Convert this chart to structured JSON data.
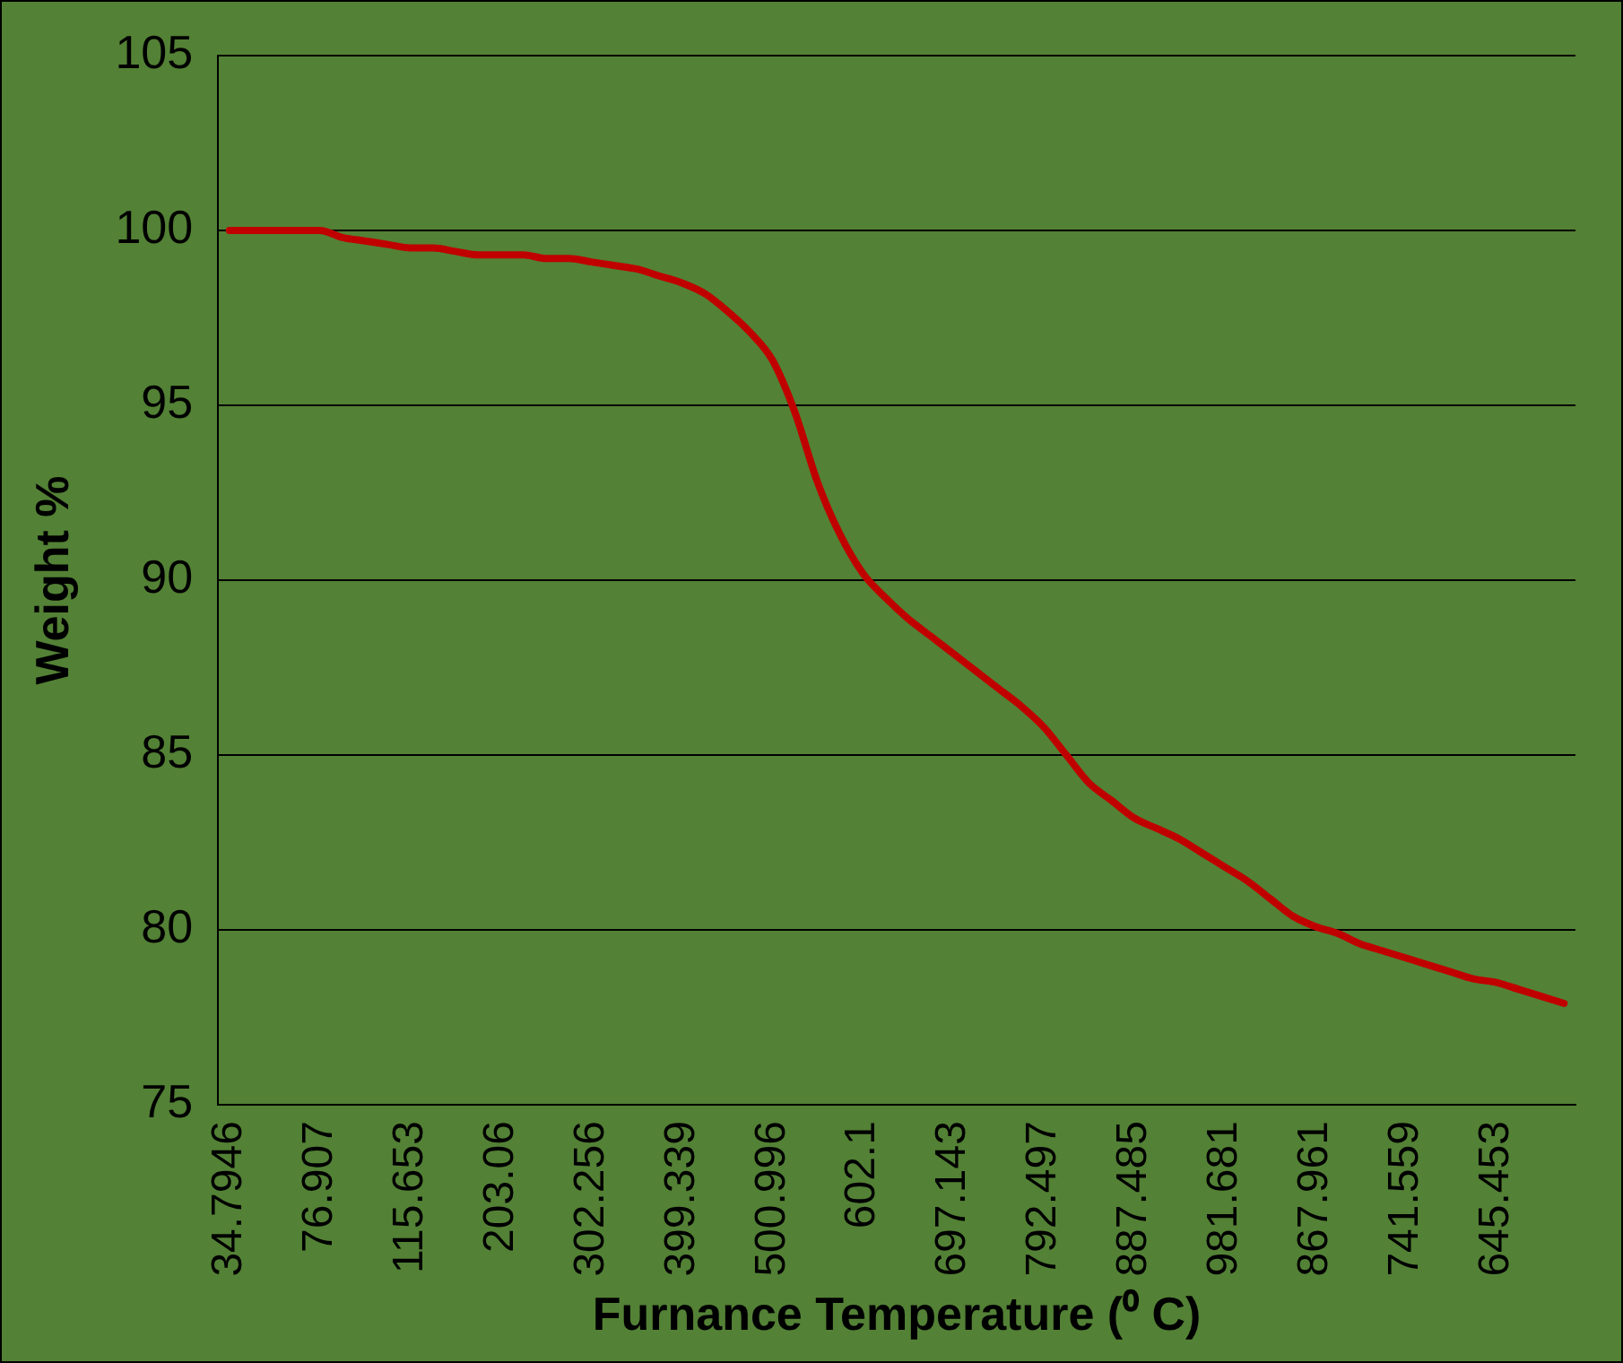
{
  "chart_data": {
    "type": "line",
    "xlabel": "Furnance Temperature (⁰ C)",
    "ylabel": "Weight %",
    "categories": [
      "34.7946",
      null,
      null,
      null,
      "76.907",
      null,
      null,
      null,
      "115.653",
      null,
      null,
      null,
      "203.06",
      null,
      null,
      null,
      "302.256",
      null,
      null,
      null,
      "399.339",
      null,
      null,
      null,
      "500.996",
      null,
      null,
      null,
      "602.1",
      null,
      null,
      null,
      "697.143",
      null,
      null,
      null,
      "792.497",
      null,
      null,
      null,
      "887.485",
      null,
      null,
      null,
      "981.681",
      null,
      null,
      null,
      "867.961",
      null,
      null,
      null,
      "741.559",
      null,
      null,
      null,
      "645.453",
      null,
      null,
      null
    ],
    "series": [
      {
        "color": "#c00000",
        "values": [
          100,
          100,
          100,
          100,
          100,
          99.8,
          99.7,
          99.6,
          99.5,
          99.5,
          99.4,
          99.3,
          99.3,
          99.3,
          99.2,
          99.2,
          99.1,
          99,
          98.9,
          98.7,
          98.5,
          98.2,
          97.7,
          97.1,
          96.3,
          94.8,
          92.8,
          91.3,
          90.2,
          89.5,
          88.9,
          88.4,
          87.9,
          87.4,
          86.9,
          86.4,
          85.8,
          85,
          84.2,
          83.7,
          83.2,
          82.9,
          82.6,
          82.2,
          81.8,
          81.4,
          80.9,
          80.4,
          80.1,
          79.9,
          79.6,
          79.4,
          79.2,
          79,
          78.8,
          78.6,
          78.5,
          78.3,
          78.1,
          77.9
        ]
      }
    ],
    "ylim": [
      75,
      105
    ],
    "yticks": [
      75,
      80,
      85,
      90,
      95,
      100,
      105
    ],
    "grid": "y",
    "legend": false,
    "marker": "none",
    "line_style": "solid"
  }
}
